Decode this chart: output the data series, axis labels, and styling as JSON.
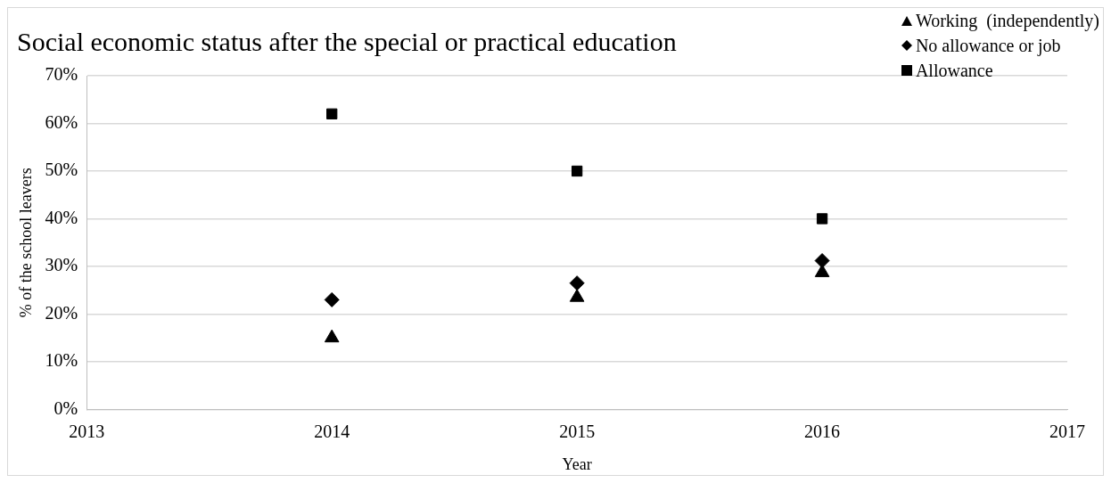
{
  "chart_data": {
    "type": "scatter",
    "title": "Social economic status after the special or practical education",
    "xlabel": "Year",
    "ylabel": "% of the school leavers",
    "x": [
      2014,
      2015,
      2016
    ],
    "series": [
      {
        "name": "Working  (independently)",
        "color": "#000000",
        "marker": "triangle",
        "values": [
          15,
          23.5,
          28.7
        ]
      },
      {
        "name": "No allowance or job",
        "color": "#000000",
        "marker": "diamond",
        "values": [
          23,
          26.5,
          31.2
        ]
      },
      {
        "name": "Allowance",
        "color": "#000000",
        "marker": "square",
        "values": [
          62,
          50,
          40
        ]
      }
    ],
    "xlim": [
      2013,
      2017
    ],
    "xticks": [
      2013,
      2014,
      2015,
      2016,
      2017
    ],
    "ylim": [
      0,
      70
    ],
    "yticks": [
      {
        "value": 0,
        "label": "0%"
      },
      {
        "value": 10,
        "label": "10%"
      },
      {
        "value": 20,
        "label": "20%"
      },
      {
        "value": 30,
        "label": "30%"
      },
      {
        "value": 40,
        "label": "40%"
      },
      {
        "value": 50,
        "label": "50%"
      },
      {
        "value": 60,
        "label": "60%"
      },
      {
        "value": 70,
        "label": "70%"
      }
    ],
    "grid": "y",
    "legend": "top right"
  }
}
